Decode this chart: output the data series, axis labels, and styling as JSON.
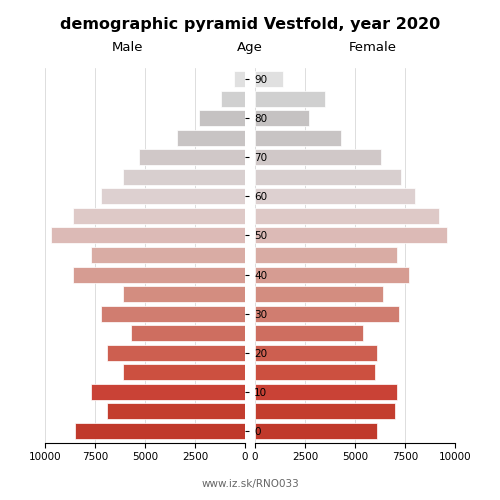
{
  "title": "demographic pyramid Vestfold, year 2020",
  "label_male": "Male",
  "label_female": "Female",
  "label_age": "Age",
  "footer": "www.iz.sk/RNO033",
  "male": [
    8500,
    6900,
    7700,
    6100,
    6900,
    5700,
    7200,
    6100,
    8600,
    7700,
    9700,
    8600,
    7200,
    6100,
    5300,
    3400,
    2300,
    1200,
    550
  ],
  "female": [
    6100,
    7000,
    7100,
    6000,
    6100,
    5400,
    7200,
    6400,
    7700,
    7100,
    9600,
    9200,
    8000,
    7300,
    6300,
    4300,
    2700,
    3500,
    1400
  ],
  "xlim": 10000,
  "bar_colors": [
    "#c0392b",
    "#c33d2e",
    "#c94236",
    "#cc5040",
    "#cd5f50",
    "#ce6e60",
    "#d07d70",
    "#d38d80",
    "#d69c92",
    "#d9acA4",
    "#dcbab6",
    "#dec9c7",
    "#ddd0d0",
    "#d8cfcf",
    "#d0c8c8",
    "#c8c4c4",
    "#c5c2c2",
    "#d0d0d0",
    "#e0e0e0"
  ],
  "age_tick_indices": [
    0,
    2,
    4,
    6,
    8,
    10,
    12,
    14,
    16,
    18
  ],
  "age_tick_labels": [
    "0",
    "10",
    "20",
    "30",
    "40",
    "50",
    "60",
    "70",
    "80",
    "90"
  ],
  "xticks": [
    0,
    2500,
    5000,
    7500,
    10000
  ],
  "xtick_labels": [
    "0",
    "2500",
    "5000",
    "7500",
    "10000"
  ],
  "background_color": "#ffffff"
}
